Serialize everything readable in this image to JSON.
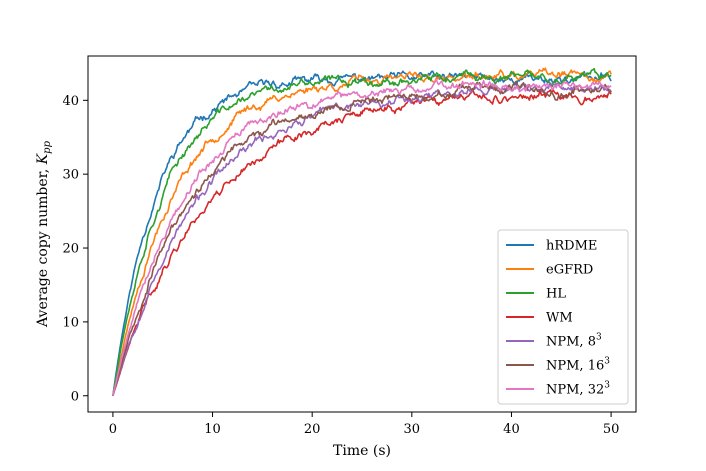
{
  "chart_data": {
    "type": "line",
    "title": "",
    "xlabel": "Time (s)",
    "ylabel_main": "Average copy number, ",
    "ylabel_symbol": "K",
    "ylabel_subscript": "pp",
    "xlim": [
      -2.5,
      52.5
    ],
    "ylim": [
      -2.2,
      46.0
    ],
    "xticks": [
      0,
      10,
      20,
      30,
      40,
      50
    ],
    "xtick_labels": [
      "0",
      "10",
      "20",
      "30",
      "40",
      "50"
    ],
    "yticks": [
      0,
      10,
      20,
      30,
      40
    ],
    "ytick_labels": [
      "0",
      "10",
      "20",
      "30",
      "40"
    ],
    "legend_position": "bottom-right",
    "x_start": 0,
    "x_end": 50,
    "series": [
      {
        "name": "hRDME",
        "label_base": "hRDME",
        "label_sup": "",
        "color": "#1f77b4",
        "plateau": 43.0,
        "tau": 4.3,
        "noise": 0.45,
        "seed": 11
      },
      {
        "name": "eGFRD",
        "label_base": "eGFRD",
        "label_sup": "",
        "color": "#ff7f0e",
        "plateau": 43.2,
        "tau": 6.0,
        "noise": 0.45,
        "seed": 23
      },
      {
        "name": "HL",
        "label_base": "HL",
        "label_sup": "",
        "color": "#2ca02c",
        "plateau": 43.0,
        "tau": 4.9,
        "noise": 0.45,
        "seed": 37
      },
      {
        "name": "WM",
        "label_base": "WM",
        "label_sup": "",
        "color": "#d62728",
        "plateau": 40.9,
        "tau": 9.3,
        "noise": 0.45,
        "seed": 41
      },
      {
        "name": "NPM, 8^3",
        "label_base": "NPM, 8",
        "label_sup": "3",
        "color": "#9467bd",
        "plateau": 41.8,
        "tau": 8.5,
        "noise": 0.45,
        "seed": 53
      },
      {
        "name": "NPM, 16^3",
        "label_base": "NPM, 16",
        "label_sup": "3",
        "color": "#8c564b",
        "plateau": 41.5,
        "tau": 7.6,
        "noise": 0.45,
        "seed": 67
      },
      {
        "name": "NPM, 32^3",
        "label_base": "NPM, 32",
        "label_sup": "3",
        "color": "#e377c2",
        "plateau": 42.0,
        "tau": 6.9,
        "noise": 0.45,
        "seed": 79
      }
    ]
  }
}
